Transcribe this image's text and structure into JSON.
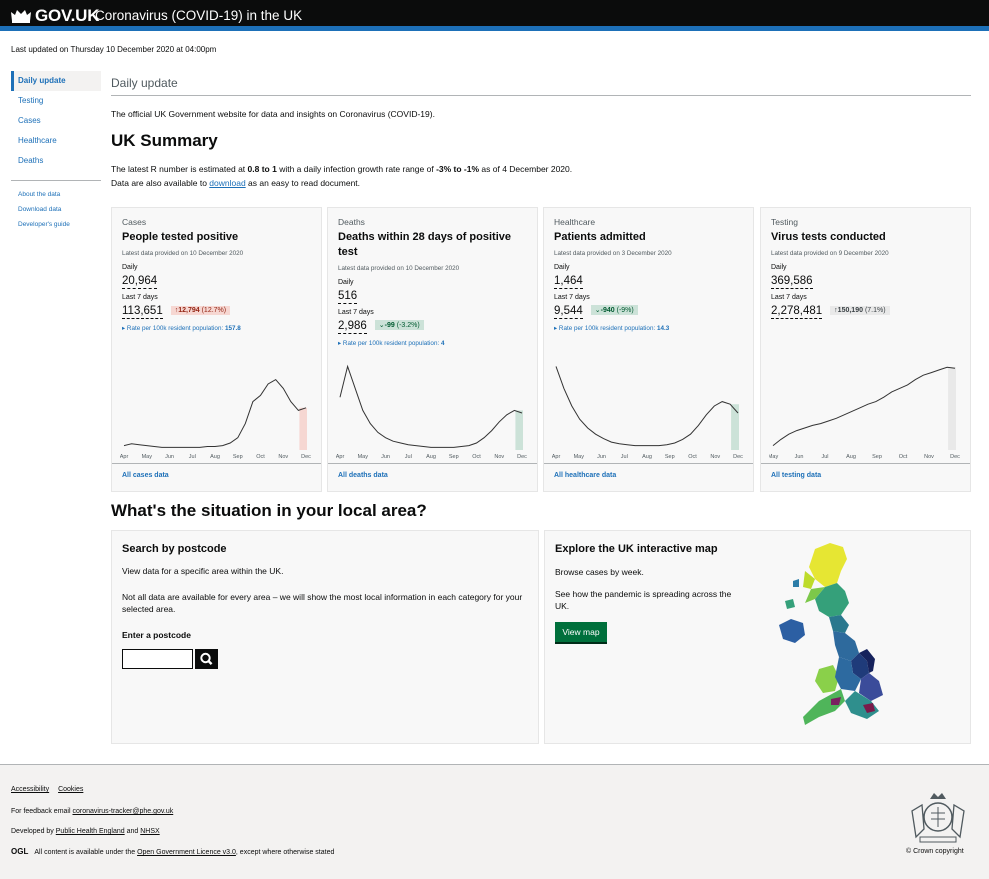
{
  "header": {
    "brand": "GOV.UK",
    "service": "Coronavirus (COVID-19) in the UK"
  },
  "last_updated": "Last updated on Thursday 10 December 2020 at 04:00pm",
  "sidenav": {
    "items": [
      {
        "label": "Daily update",
        "active": true
      },
      {
        "label": "Testing"
      },
      {
        "label": "Cases"
      },
      {
        "label": "Healthcare"
      },
      {
        "label": "Deaths"
      }
    ],
    "sub": [
      "About the data",
      "Download data",
      "Developer's guide"
    ]
  },
  "page_heading": "Daily update",
  "intro": "The official UK Government website for data and insights on Coronavirus (COVID-19).",
  "summary_title": "UK Summary",
  "r_line": {
    "pre": "The latest R number is estimated at ",
    "r": "0.8 to 1",
    "mid": " with a daily infection growth rate range of ",
    "growth": "-3% to -1%",
    "post": " as of 4 December 2020.",
    "line2_pre": "Data are also available to ",
    "download": "download",
    "line2_post": " as an easy to read document."
  },
  "cards": [
    {
      "category": "Cases",
      "title": "People tested positive",
      "provided": "Latest data provided on 10 December 2020",
      "daily_label": "Daily",
      "daily": "20,964",
      "week_label": "Last 7 days",
      "week": "113,651",
      "change_arrow": "↑",
      "change": "12,794",
      "change_pct": "(12.7%)",
      "rate_label": "Rate per 100k resident population: ",
      "rate": "157.8",
      "link": "All cases data",
      "months": [
        "Apr",
        "May",
        "Jun",
        "Jul",
        "Aug",
        "Sep",
        "Oct",
        "Nov",
        "Dec"
      ],
      "series_color": "#333333",
      "highlight_color": "#f6d7d2"
    },
    {
      "category": "Deaths",
      "title": "Deaths within 28 days of positive test",
      "provided": "Latest data provided on 10 December 2020",
      "daily_label": "Daily",
      "daily": "516",
      "week_label": "Last 7 days",
      "week": "2,986",
      "change_arrow": "⌄",
      "change": "-99",
      "change_pct": "(-3.2%)",
      "rate_label": "Rate per 100k resident population: ",
      "rate": "4",
      "link": "All deaths data",
      "months": [
        "Apr",
        "May",
        "Jun",
        "Jul",
        "Aug",
        "Sep",
        "Oct",
        "Nov",
        "Dec"
      ],
      "series_color": "#333333",
      "highlight_color": "#cce2d8"
    },
    {
      "category": "Healthcare",
      "title": "Patients admitted",
      "provided": "Latest data provided on 3 December 2020",
      "daily_label": "Daily",
      "daily": "1,464",
      "week_label": "Last 7 days",
      "week": "9,544",
      "change_arrow": "⌄",
      "change": "-940",
      "change_pct": "(-9%)",
      "rate_label": "Rate per 100k resident population: ",
      "rate": "14.3",
      "link": "All healthcare data",
      "months": [
        "Apr",
        "May",
        "Jun",
        "Jul",
        "Aug",
        "Sep",
        "Oct",
        "Nov",
        "Dec"
      ],
      "series_color": "#333333",
      "highlight_color": "#cce2d8"
    },
    {
      "category": "Testing",
      "title": "Virus tests conducted",
      "provided": "Latest data provided on 9 December 2020",
      "daily_label": "Daily",
      "daily": "369,586",
      "week_label": "Last 7 days",
      "week": "2,278,481",
      "change_arrow": "↑",
      "change": "150,190",
      "change_pct": "(7.1%)",
      "link": "All testing data",
      "months": [
        "May",
        "Jun",
        "Jul",
        "Aug",
        "Sep",
        "Oct",
        "Nov",
        "Dec"
      ],
      "series_color": "#333333",
      "highlight_color": "#e9e9e9"
    }
  ],
  "chart_data": [
    {
      "type": "line",
      "series": [
        {
          "values": [
            5,
            7,
            6,
            5,
            4,
            3,
            3,
            3,
            3,
            3,
            3,
            4,
            4,
            5,
            8,
            14,
            30,
            55,
            62,
            75,
            80,
            70,
            55,
            45,
            48
          ]
        }
      ]
    },
    {
      "type": "line",
      "series": [
        {
          "values": [
            60,
            95,
            70,
            45,
            30,
            20,
            14,
            10,
            8,
            6,
            5,
            4,
            3,
            3,
            3,
            3,
            4,
            5,
            8,
            14,
            22,
            32,
            40,
            45,
            42
          ]
        }
      ]
    },
    {
      "type": "line",
      "series": [
        {
          "values": [
            95,
            70,
            50,
            35,
            25,
            18,
            13,
            9,
            7,
            6,
            5,
            5,
            5,
            5,
            6,
            8,
            12,
            18,
            28,
            40,
            50,
            55,
            52,
            42
          ]
        }
      ]
    },
    {
      "type": "line",
      "series": [
        {
          "values": [
            5,
            12,
            18,
            22,
            25,
            28,
            30,
            33,
            36,
            40,
            44,
            48,
            52,
            55,
            60,
            66,
            70,
            74,
            80,
            85,
            88,
            91,
            94,
            93
          ]
        }
      ]
    }
  ],
  "local": {
    "title": "What's the situation in your local area?",
    "postcode": {
      "title": "Search by postcode",
      "text1": "View data for a specific area within the UK.",
      "text2": "Not all data are available for every area – we will show the most local information in each category for your selected area.",
      "label": "Enter a postcode",
      "value": ""
    },
    "map": {
      "title": "Explore the UK interactive map",
      "text1": "Browse cases by week.",
      "text2": "See how the pandemic is spreading across the UK.",
      "button": "View map"
    }
  },
  "footer": {
    "links": [
      "Accessibility",
      "Cookies"
    ],
    "feedback_pre": "For feedback email ",
    "feedback_email": "coronavirus-tracker@phe.gov.uk",
    "developed_pre": "Developed by ",
    "phe": "Public Health England",
    "and": " and ",
    "nhsx": "NHSX",
    "ogl": "OGL",
    "licence_pre": "All content is available under the ",
    "licence": "Open Government Licence v3.0",
    "licence_post": ", except where otherwise stated",
    "copyright": "© Crown copyright"
  }
}
